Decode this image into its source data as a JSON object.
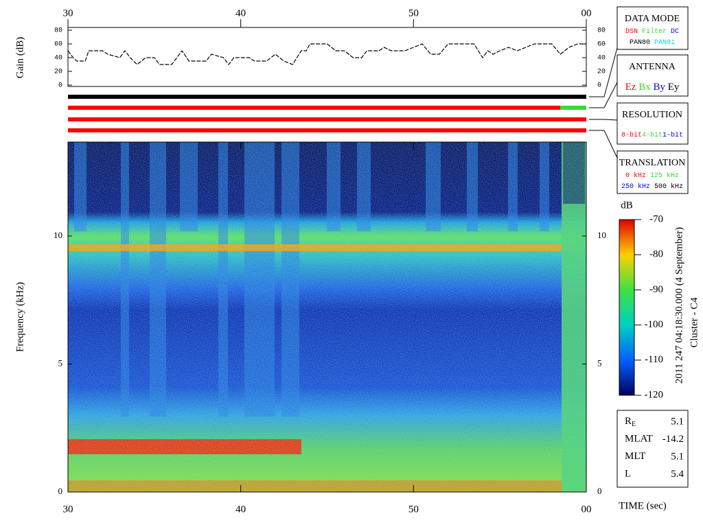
{
  "chart_data": [
    {
      "type": "line",
      "ylabel": "Gain (dB)",
      "xlim": [
        30,
        60
      ],
      "xticks": [
        30,
        40,
        50,
        {
          "value": 60,
          "label": "00"
        }
      ],
      "ylim": [
        0,
        80
      ],
      "yticks": [
        0,
        20,
        40,
        60,
        80
      ],
      "color": "#000000",
      "x": [
        30,
        30.3,
        30.5,
        31,
        31.2,
        32,
        32.3,
        33,
        33.3,
        33.6,
        34,
        34.5,
        35,
        35.3,
        36,
        36.3,
        36.6,
        37,
        38,
        38.3,
        39,
        39.3,
        39.6,
        40.5,
        40.8,
        41.5,
        42,
        42.5,
        43,
        43.5,
        43.8,
        44,
        45,
        45.5,
        46,
        46.5,
        47,
        47.3,
        48,
        48.3,
        48.7,
        49.5,
        50,
        50.5,
        51,
        51.5,
        52,
        53.5,
        54,
        54.3,
        54.6,
        55,
        55.5,
        56,
        57,
        58,
        58.5,
        59,
        59.5,
        60
      ],
      "values": [
        50,
        40,
        35,
        35,
        50,
        50,
        45,
        40,
        50,
        40,
        30,
        40,
        40,
        30,
        30,
        40,
        50,
        35,
        35,
        45,
        40,
        30,
        40,
        40,
        35,
        35,
        45,
        35,
        30,
        50,
        50,
        60,
        60,
        50,
        50,
        40,
        40,
        50,
        50,
        55,
        50,
        50,
        55,
        60,
        45,
        45,
        60,
        60,
        40,
        50,
        45,
        50,
        55,
        50,
        60,
        60,
        45,
        55,
        60,
        60
      ]
    },
    {
      "type": "heatmap",
      "ylabel": "Frequency (kHz)",
      "xlabel": "TIME (sec)",
      "xlim": [
        30,
        60
      ],
      "xticks": [
        30,
        40,
        50,
        {
          "value": 60,
          "label": "00"
        }
      ],
      "ylim": [
        0,
        13.67
      ],
      "yticks": [
        0,
        5,
        10
      ],
      "colorbar": {
        "label": "dB",
        "lim": [
          -120,
          -70
        ],
        "ticks": [
          -70,
          -80,
          -90,
          -100,
          -110,
          -120
        ]
      },
      "side_text": [
        "2011 247 04:18:30.000 (4 September)",
        "Cluster - C4"
      ],
      "mode_bars": [
        [
          {
            "start": 30,
            "end": 60,
            "color": "#000000"
          }
        ],
        [
          {
            "start": 30,
            "end": 58.5,
            "color": "#ff0000"
          },
          {
            "start": 58.5,
            "end": 60,
            "color": "#33dd33"
          }
        ],
        [
          {
            "start": 30,
            "end": 60,
            "color": "#ff0000"
          }
        ],
        [
          {
            "start": 30,
            "end": 60,
            "color": "#ff0000"
          }
        ]
      ],
      "legends": [
        {
          "title": "DATA MODE",
          "rows": [
            [
              {
                "label": "DSN",
                "color": "#ff0000"
              },
              {
                "label": "Filter",
                "color": "#33dd33"
              },
              {
                "label": "DC",
                "color": "#0000ff"
              }
            ],
            [
              {
                "label": "PAN80",
                "color": "#000000"
              },
              {
                "label": "PAN81",
                "color": "#00dddd"
              }
            ]
          ]
        },
        {
          "title": "ANTENNA",
          "rows": [
            [
              {
                "label": "Ez",
                "color": "#ff0000"
              },
              {
                "label": "Bx",
                "color": "#33dd33"
              },
              {
                "label": "By",
                "color": "#0000ff"
              },
              {
                "label": "Ey",
                "color": "#000000"
              }
            ]
          ]
        },
        {
          "title": "RESOLUTION",
          "rows": [
            [
              {
                "label": "8-bit",
                "color": "#ff0000"
              },
              {
                "label": "4-bit",
                "color": "#33dd33"
              },
              {
                "label": "1-bit",
                "color": "#0000ff"
              }
            ]
          ]
        },
        {
          "title": "TRANSLATION",
          "rows": [
            [
              {
                "label": "0 kHz",
                "color": "#ff0000"
              },
              {
                "label": "125 kHz",
                "color": "#33dd33"
              }
            ],
            [
              {
                "label": "250 kHz",
                "color": "#0000ff"
              },
              {
                "label": "500 kHz",
                "color": "#000000"
              }
            ]
          ]
        }
      ],
      "ephemeris": [
        {
          "name": "R",
          "sub": "E",
          "value": 5.1
        },
        {
          "name": "MLAT",
          "value": -14.2
        },
        {
          "name": "MLT",
          "value": 5.1
        },
        {
          "name": "L",
          "value": 5.4
        }
      ]
    }
  ]
}
